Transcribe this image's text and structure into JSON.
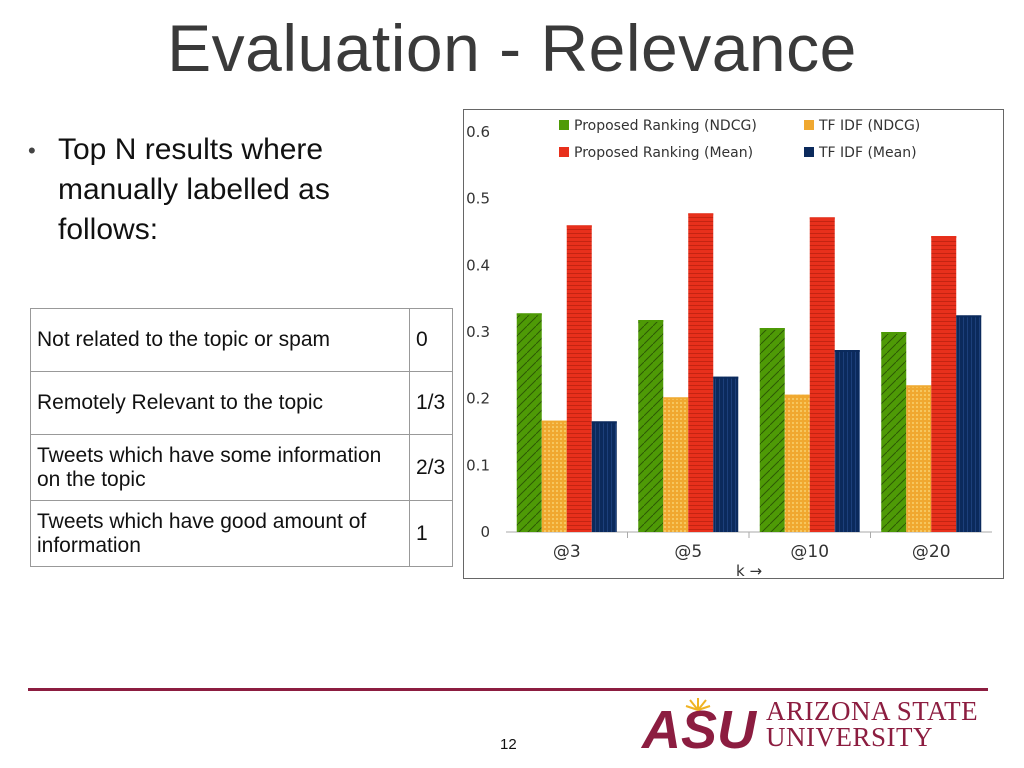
{
  "slide": {
    "title": "Evaluation - Relevance",
    "bullet": "Top N results where manually labelled as follows:",
    "page_number": "12"
  },
  "label_table": [
    {
      "label": "Not related to the topic or spam",
      "value": "0"
    },
    {
      "label": "Remotely Relevant to the topic",
      "value": "1/3"
    },
    {
      "label": "Tweets which have some information on the topic",
      "value": "2/3"
    },
    {
      "label": "Tweets which have good amount of information",
      "value": "1"
    }
  ],
  "logo": {
    "line1": "ARIZONA STATE",
    "line2": "UNIVERSITY",
    "mark": "ASU"
  },
  "chart_data": {
    "type": "bar",
    "categories": [
      "@3",
      "@5",
      "@10",
      "@20"
    ],
    "xlabel": "k →",
    "ylim": [
      0,
      0.6
    ],
    "yticks": [
      "0",
      "0.1",
      "0.2",
      "0.3",
      "0.4",
      "0.5",
      "0.6"
    ],
    "legend_position": "top",
    "series": [
      {
        "name": "Proposed Ranking (NDCG)",
        "color": "#4e9a06",
        "values": [
          0.328,
          0.318,
          0.306,
          0.3
        ]
      },
      {
        "name": "TF IDF (NDCG)",
        "color": "#f0a830",
        "values": [
          0.167,
          0.202,
          0.206,
          0.22
        ]
      },
      {
        "name": "Proposed Ranking (Mean)",
        "color": "#e8301c",
        "values": [
          0.46,
          0.478,
          0.472,
          0.444
        ]
      },
      {
        "name": "TF IDF (Mean)",
        "color": "#0b2a5c",
        "values": [
          0.166,
          0.233,
          0.273,
          0.325
        ]
      }
    ]
  }
}
